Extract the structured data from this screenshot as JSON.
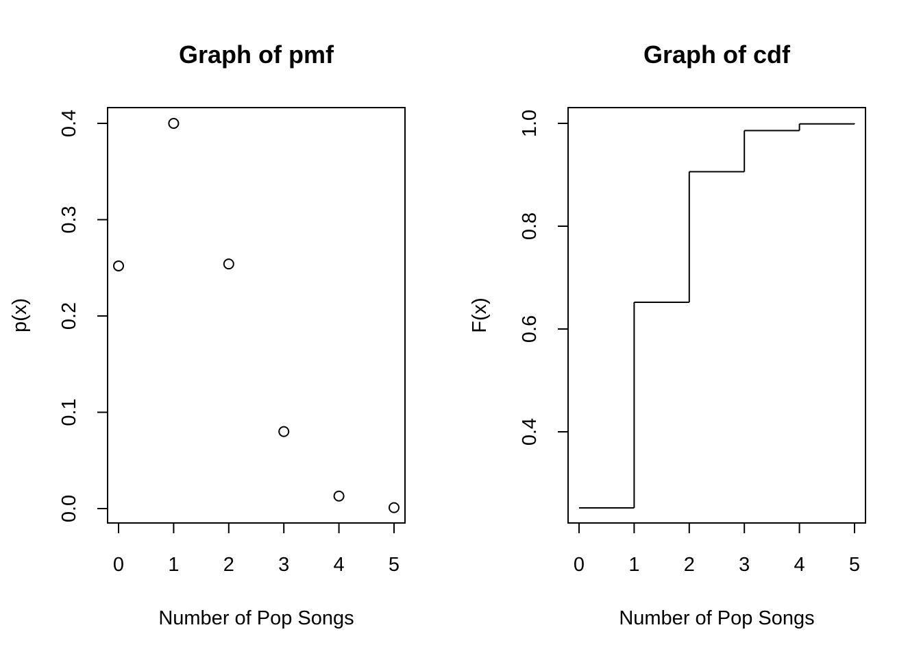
{
  "chart_data": [
    {
      "type": "scatter",
      "title": "Graph of pmf",
      "xlabel": "Number of Pop Songs",
      "ylabel": "p(x)",
      "x": [
        0,
        1,
        2,
        3,
        4,
        5
      ],
      "values": [
        0.252,
        0.4,
        0.254,
        0.08,
        0.013,
        0.001
      ],
      "xlim": [
        0,
        5
      ],
      "ylim": [
        0,
        0.4
      ],
      "xticks": [
        "0",
        "1",
        "2",
        "3",
        "4",
        "5"
      ],
      "yticks": [
        "0.0",
        "0.1",
        "0.2",
        "0.3",
        "0.4"
      ],
      "grid": false,
      "marker": "open-circle"
    },
    {
      "type": "line",
      "title": "Graph of cdf",
      "xlabel": "Number of Pop Songs",
      "ylabel": "F(x)",
      "x": [
        0,
        1,
        2,
        3,
        4,
        5
      ],
      "values": [
        0.252,
        0.652,
        0.906,
        0.986,
        0.999,
        1.0
      ],
      "xlim": [
        0,
        5
      ],
      "ylim": [
        0.252,
        1.0
      ],
      "xticks": [
        "0",
        "1",
        "2",
        "3",
        "4",
        "5"
      ],
      "yticks": [
        "0.4",
        "0.6",
        "0.8",
        "1.0"
      ],
      "grid": false,
      "line_style": "step"
    }
  ]
}
